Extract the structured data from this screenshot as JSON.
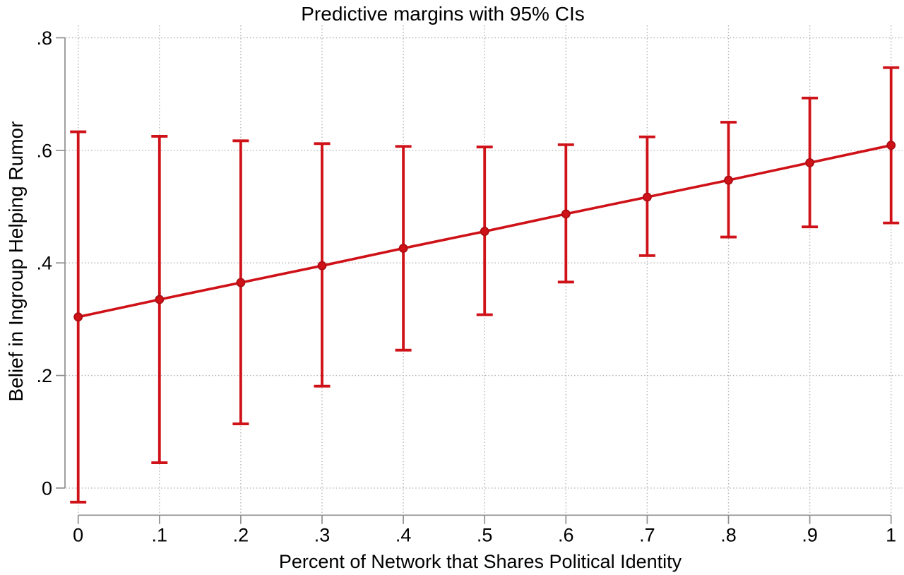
{
  "chart_data": {
    "type": "line",
    "title": "Predictive margins with 95% CIs",
    "xlabel": "Percent of Network that Shares Political Identity",
    "ylabel": "Belief in Ingroup Helping Rumor",
    "x": [
      0,
      0.1,
      0.2,
      0.3,
      0.4,
      0.5,
      0.6,
      0.7,
      0.8,
      0.9,
      1
    ],
    "xtick_labels": [
      "0",
      ".1",
      ".2",
      ".3",
      ".4",
      ".5",
      ".6",
      ".7",
      ".8",
      ".9",
      "1"
    ],
    "ytick_values": [
      0,
      0.2,
      0.4,
      0.6,
      0.8
    ],
    "ytick_labels": [
      "0",
      ".2",
      ".4",
      ".6",
      ".8"
    ],
    "xlim": [
      -0.016,
      1.014
    ],
    "ylim": [
      -0.048,
      0.822
    ],
    "grid": {
      "horizontal": true,
      "vertical": true,
      "style": "dotted"
    },
    "legend": "none",
    "series": [
      {
        "name": "Predictive margin",
        "marker": "circle",
        "ci_level": "95%",
        "values": [
          0.304,
          0.335,
          0.365,
          0.395,
          0.426,
          0.456,
          0.487,
          0.517,
          0.547,
          0.578,
          0.609
        ],
        "ci_low": [
          -0.025,
          0.045,
          0.114,
          0.181,
          0.245,
          0.308,
          0.366,
          0.413,
          0.446,
          0.464,
          0.471
        ],
        "ci_high": [
          0.633,
          0.625,
          0.617,
          0.612,
          0.607,
          0.606,
          0.61,
          0.624,
          0.65,
          0.693,
          0.747
        ]
      }
    ],
    "colors": {
      "series": "#cf1118",
      "marker_edge": "#a80d12",
      "grid": "#b8b8b8",
      "axis": "#8f8f8f",
      "text": "#000000",
      "background": "#ffffff"
    }
  }
}
